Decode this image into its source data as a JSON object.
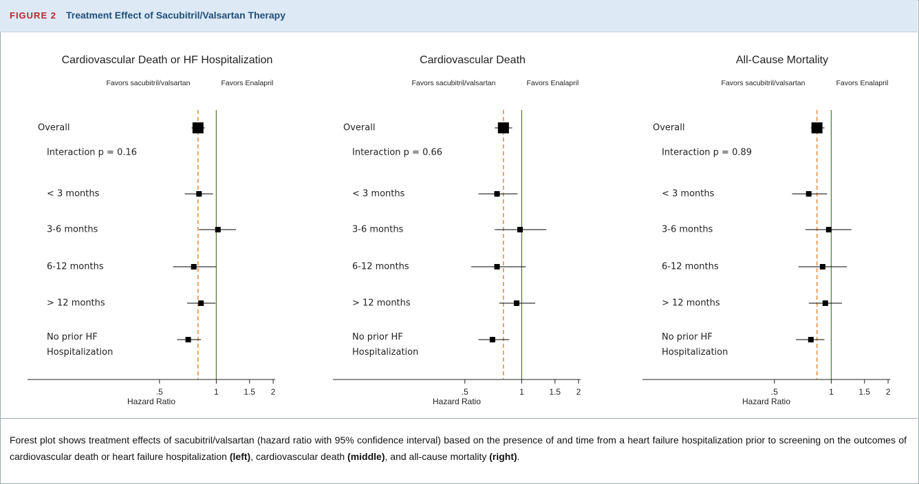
{
  "figure_label": "FIGURE 2",
  "figure_title": "Treatment Effect of Sacubitril/Valsartan Therapy",
  "caption": [
    {
      "text": "Forest plot shows treatment effects of sacubitril/valsartan (hazard ratio with 95% confidence interval) based on the presence of and time from a heart failure hospitalization prior to screening on the outcomes of cardiovascular death or heart failure hospitalization ",
      "bold": false
    },
    {
      "text": "(left)",
      "bold": true
    },
    {
      "text": ", cardiovascular death ",
      "bold": false
    },
    {
      "text": "(middle)",
      "bold": true
    },
    {
      "text": ", and all-cause mortality ",
      "bold": false
    },
    {
      "text": "(right)",
      "bold": true
    },
    {
      "text": ".",
      "bold": false
    }
  ],
  "chart_data": [
    {
      "type": "forest",
      "title": "Cardiovascular Death or HF Hospitalization",
      "favors_left": "Favors sacubitril/valsartan",
      "favors_right": "Favors Enalapril",
      "x_label": "Hazard Ratio",
      "log_x": true,
      "xlim": [
        0.1,
        2.05
      ],
      "xticks": [
        {
          "value": 0.5,
          "label": ".5"
        },
        1,
        1.5,
        2
      ],
      "reference_line": 1,
      "reference_color": "#5b7d3a",
      "estimate_line_color": "#e08a3c",
      "marker_color": "#000000",
      "overall": {
        "label": "Overall",
        "hr": 0.8,
        "lo": 0.74,
        "hi": 0.87
      },
      "interaction": "Interaction p = 0.16",
      "rows": [
        {
          "label": "< 3 months",
          "hr": 0.81,
          "lo": 0.68,
          "hi": 0.96
        },
        {
          "label": "3-6 months",
          "hr": 1.02,
          "lo": 0.81,
          "hi": 1.27
        },
        {
          "label": "6-12 months",
          "hr": 0.76,
          "lo": 0.59,
          "hi": 1.0
        },
        {
          "label": "> 12 months",
          "hr": 0.83,
          "lo": 0.7,
          "hi": 0.99
        },
        {
          "label": "No prior HF Hospitalization",
          "hr": 0.71,
          "lo": 0.62,
          "hi": 0.83
        }
      ]
    },
    {
      "type": "forest",
      "title": "Cardiovascular Death",
      "favors_left": "Favors sacubitril/valsartan",
      "favors_right": "Favors Enalapril",
      "x_label": "Hazard Ratio",
      "log_x": true,
      "xlim": [
        0.1,
        2.05
      ],
      "xticks": [
        {
          "value": 0.5,
          "label": ".5"
        },
        1,
        1.5,
        2
      ],
      "reference_line": 1,
      "reference_color": "#5b7d3a",
      "estimate_line_color": "#e08a3c",
      "marker_color": "#000000",
      "overall": {
        "label": "Overall",
        "hr": 0.8,
        "lo": 0.72,
        "hi": 0.89
      },
      "interaction": "Interaction p = 0.66",
      "rows": [
        {
          "label": "< 3 months",
          "hr": 0.74,
          "lo": 0.59,
          "hi": 0.95
        },
        {
          "label": "3-6 months",
          "hr": 0.98,
          "lo": 0.72,
          "hi": 1.35
        },
        {
          "label": "6-12 months",
          "hr": 0.74,
          "lo": 0.54,
          "hi": 1.05
        },
        {
          "label": "> 12 months",
          "hr": 0.94,
          "lo": 0.76,
          "hi": 1.18
        },
        {
          "label": "No prior HF Hospitalization",
          "hr": 0.7,
          "lo": 0.59,
          "hi": 0.86
        }
      ]
    },
    {
      "type": "forest",
      "title": "All-Cause Mortality",
      "favors_left": "Favors sacubitril/valsartan",
      "favors_right": "Favors Enalapril",
      "x_label": "Hazard Ratio",
      "log_x": true,
      "xlim": [
        0.1,
        2.05
      ],
      "xticks": [
        {
          "value": 0.5,
          "label": ".5"
        },
        1,
        1.5,
        2
      ],
      "reference_line": 1,
      "reference_color": "#5b7d3a",
      "estimate_line_color": "#e08a3c",
      "marker_color": "#000000",
      "overall": {
        "label": "Overall",
        "hr": 0.84,
        "lo": 0.78,
        "hi": 0.92
      },
      "interaction": "Interaction p = 0.89",
      "rows": [
        {
          "label": "< 3 months",
          "hr": 0.76,
          "lo": 0.62,
          "hi": 0.95
        },
        {
          "label": "3-6 months",
          "hr": 0.97,
          "lo": 0.73,
          "hi": 1.28
        },
        {
          "label": "6-12 months",
          "hr": 0.9,
          "lo": 0.67,
          "hi": 1.21
        },
        {
          "label": "> 12 months",
          "hr": 0.93,
          "lo": 0.76,
          "hi": 1.14
        },
        {
          "label": "No prior HF Hospitalization",
          "hr": 0.78,
          "lo": 0.65,
          "hi": 0.92
        }
      ]
    }
  ]
}
